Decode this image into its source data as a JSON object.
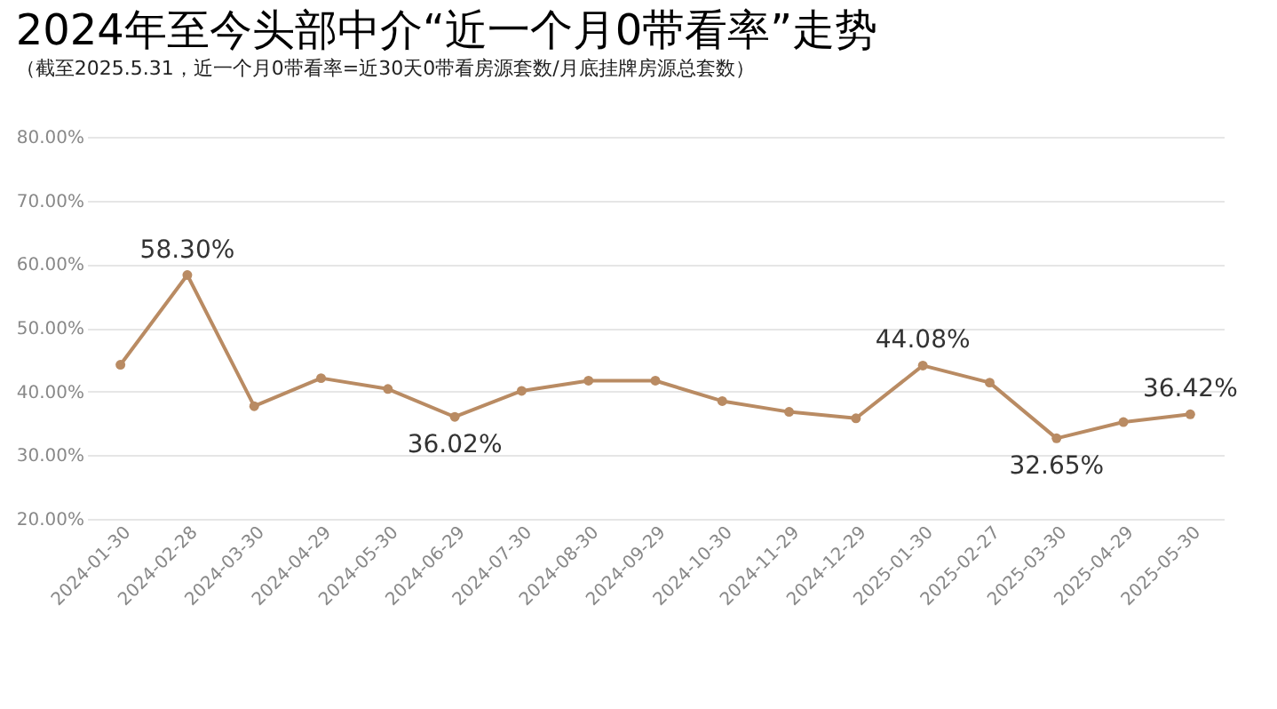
{
  "chart_data": {
    "type": "line",
    "title": "2024年至今头部中介“近一个月0带看率”走势",
    "subtitle": "（截至2025.5.31，近一个月0带看率=近30天0带看房源套数/月底挂牌房源总套数）",
    "categories": [
      "2024-01-30",
      "2024-02-28",
      "2024-03-30",
      "2024-04-29",
      "2024-05-30",
      "2024-06-29",
      "2024-07-30",
      "2024-08-30",
      "2024-09-29",
      "2024-10-30",
      "2024-11-29",
      "2024-12-29",
      "2025-01-30",
      "2025-02-27",
      "2025-03-30",
      "2025-04-29",
      "2025-05-30"
    ],
    "series": [
      {
        "color": "#b98b63",
        "values": [
          44.2,
          58.3,
          37.7,
          42.1,
          40.4,
          36.02,
          40.1,
          41.7,
          41.7,
          38.5,
          36.8,
          35.8,
          44.08,
          41.4,
          32.65,
          35.2,
          36.42
        ],
        "value_labels": [
          null,
          "58.30%",
          null,
          null,
          null,
          "36.02%",
          null,
          null,
          null,
          null,
          null,
          null,
          "44.08%",
          null,
          "32.65%",
          null,
          "36.42%"
        ]
      }
    ],
    "ylim": [
      20,
      80
    ],
    "yticks": [
      {
        "value": 20,
        "label": "20.00%"
      },
      {
        "value": 30,
        "label": "30.00%"
      },
      {
        "value": 40,
        "label": "40.00%"
      },
      {
        "value": 50,
        "label": "50.00%"
      },
      {
        "value": 60,
        "label": "60.00%"
      },
      {
        "value": 70,
        "label": "70.00%"
      },
      {
        "value": 80,
        "label": "80.00%"
      }
    ],
    "grid": "y",
    "marker": "circle",
    "line_style": "solid"
  }
}
